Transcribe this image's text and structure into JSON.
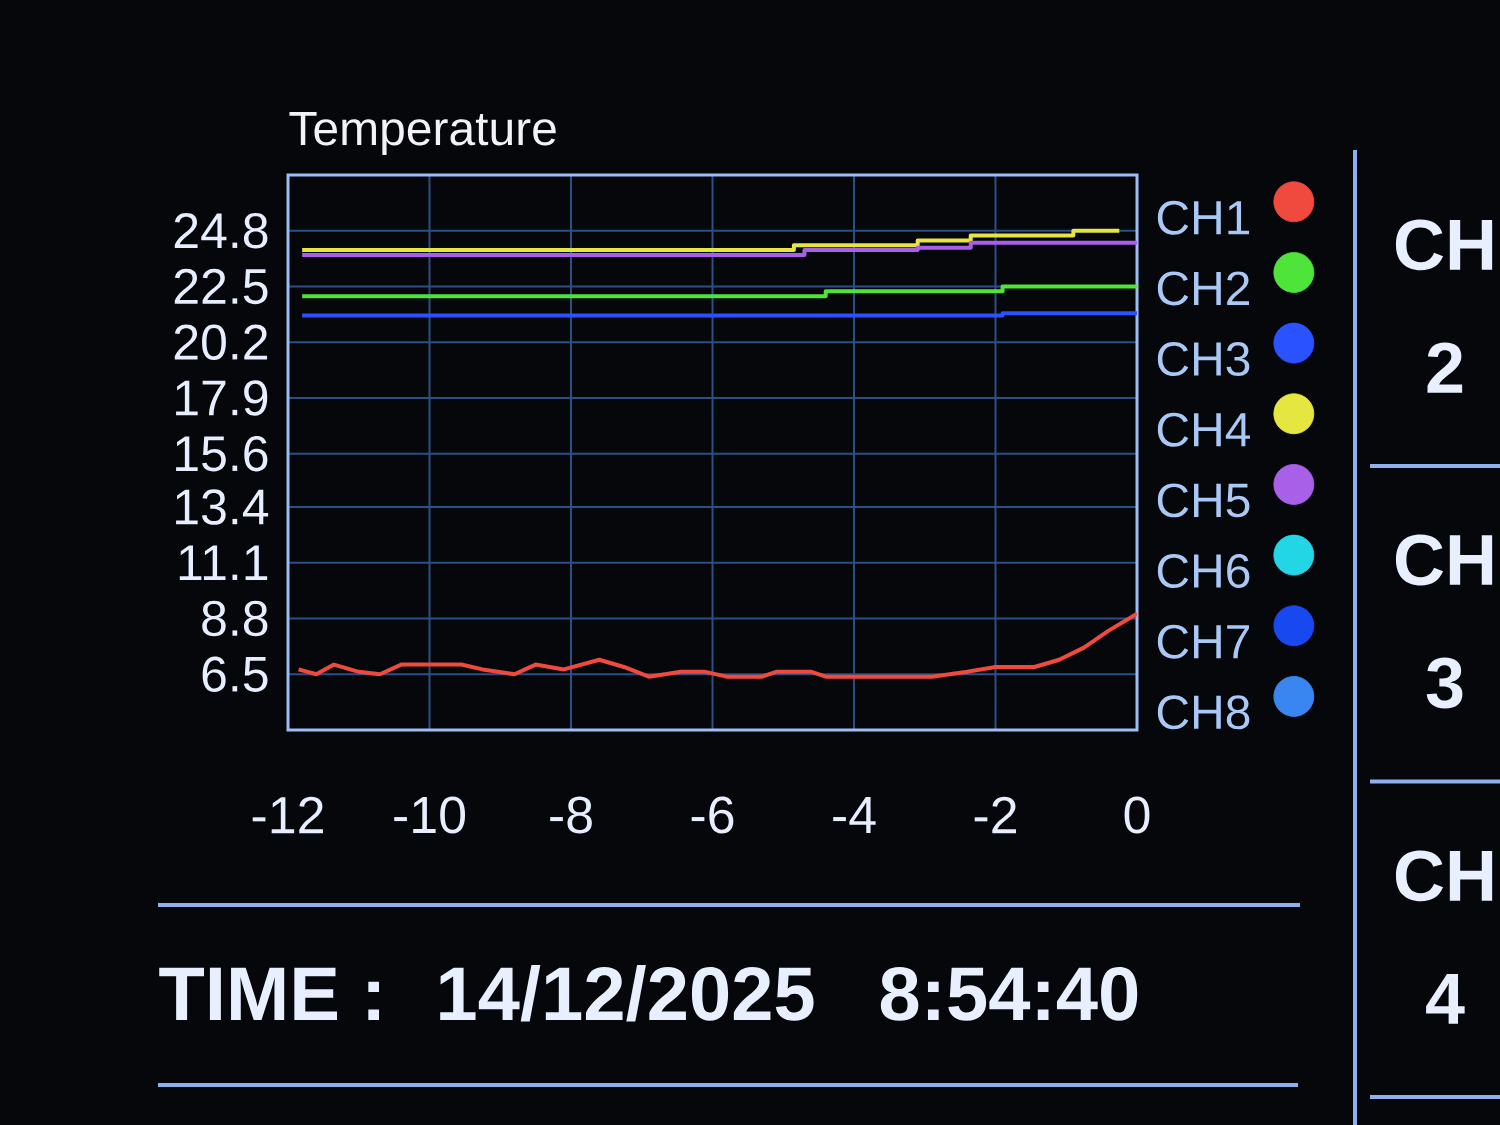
{
  "chart_data": {
    "type": "line",
    "title": "Temperature",
    "xlim": [
      -12,
      0
    ],
    "xticks": [
      -12,
      -10,
      -8,
      -6,
      -4,
      -2,
      0
    ],
    "ylim": [
      4.2,
      27.1
    ],
    "yticks": [
      6.5,
      8.8,
      11.1,
      13.4,
      15.6,
      17.9,
      20.2,
      22.5,
      24.8
    ],
    "grid": true,
    "legend": "right",
    "series": [
      {
        "name": "CH1",
        "color": "#f04a3e",
        "x": [
          -11.85,
          -11.6,
          -11.35,
          -11.0,
          -10.7,
          -10.4,
          -9.55,
          -9.25,
          -8.8,
          -8.5,
          -8.1,
          -7.6,
          -7.25,
          -6.9,
          -6.45,
          -6.1,
          -5.8,
          -5.3,
          -5.1,
          -4.6,
          -4.4,
          -2.9,
          -2.4,
          -2.0,
          -1.45,
          -1.1,
          -0.75,
          -0.4,
          0
        ],
        "values": [
          6.7,
          6.5,
          6.9,
          6.6,
          6.5,
          6.9,
          6.9,
          6.7,
          6.5,
          6.9,
          6.7,
          7.1,
          6.8,
          6.4,
          6.6,
          6.6,
          6.4,
          6.4,
          6.6,
          6.6,
          6.4,
          6.4,
          6.6,
          6.8,
          6.8,
          7.1,
          7.6,
          8.3,
          9.0
        ]
      },
      {
        "name": "CH2",
        "color": "#4ee43a",
        "x": [
          -11.8,
          -4.4,
          -4.4,
          -1.9,
          -1.9,
          0
        ],
        "values": [
          22.1,
          22.1,
          22.3,
          22.3,
          22.5,
          22.5
        ]
      },
      {
        "name": "CH3",
        "color": "#2a52ff",
        "x": [
          -11.8,
          -1.9,
          -1.9,
          0
        ],
        "values": [
          21.3,
          21.3,
          21.4,
          21.4
        ]
      },
      {
        "name": "CH4",
        "color": "#e6e640",
        "x": [
          -11.8,
          -4.85,
          -4.85,
          -3.1,
          -3.1,
          -2.35,
          -2.35,
          -0.9,
          -0.9,
          -0.25
        ],
        "values": [
          24.0,
          24.0,
          24.2,
          24.2,
          24.4,
          24.4,
          24.6,
          24.6,
          24.8,
          24.8
        ]
      },
      {
        "name": "CH5",
        "color": "#a860e8",
        "x": [
          -11.8,
          -4.7,
          -4.7,
          -3.1,
          -3.1,
          -2.35,
          -2.35,
          0
        ],
        "values": [
          23.8,
          23.8,
          24.0,
          24.0,
          24.1,
          24.1,
          24.3,
          24.3
        ]
      },
      {
        "name": "CH6",
        "color": "#22d6e6"
      },
      {
        "name": "CH7",
        "color": "#1848f0"
      },
      {
        "name": "CH8",
        "color": "#3a86f0"
      }
    ],
    "annotations": [
      "TIME :",
      "14/12/2025",
      "8:54:40",
      "CH 2",
      "CH 3",
      "CH 4"
    ]
  }
}
